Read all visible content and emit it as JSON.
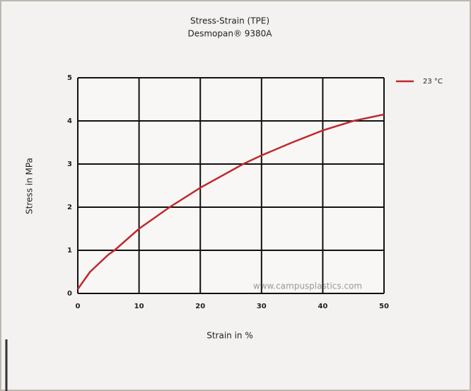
{
  "chart_data": {
    "type": "line",
    "title": "Stress-Strain (TPE)",
    "subtitle": "Desmopan® 9380A",
    "x_label": "Strain in %",
    "y_label": "Stress in MPa",
    "watermark": "www.campusplastics.com",
    "x": [
      0,
      2,
      5,
      6,
      10,
      15,
      20,
      27,
      30,
      35,
      40,
      45,
      50
    ],
    "series": [
      {
        "name": "23 °C",
        "color": "#c0282d",
        "values": [
          0.1,
          0.5,
          0.9,
          1.0,
          1.5,
          2.0,
          2.45,
          3.0,
          3.2,
          3.5,
          3.78,
          4.0,
          4.15
        ]
      }
    ],
    "xlim": [
      0,
      50
    ],
    "xticks": [
      0,
      10,
      20,
      30,
      40,
      50
    ],
    "ylim": [
      0,
      5
    ],
    "yticks": [
      0,
      1,
      2,
      3,
      4,
      5
    ],
    "grid": true,
    "legend": "top-right"
  }
}
